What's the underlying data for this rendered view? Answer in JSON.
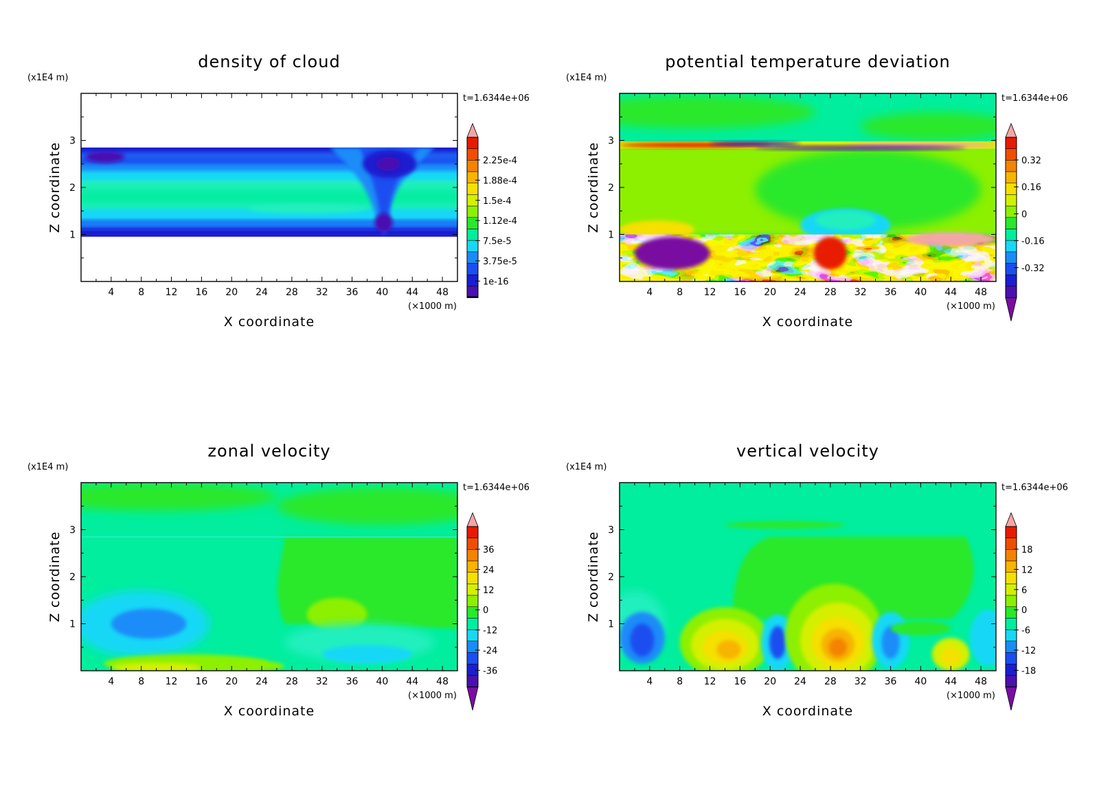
{
  "colors": {
    "palette": [
      "#7a0da1",
      "#4a10b0",
      "#1a1ed0",
      "#1a4ef0",
      "#1a8cf8",
      "#18d8f6",
      "#00ee9e",
      "#2ae82a",
      "#8df000",
      "#d4f000",
      "#f5e000",
      "#f7b400",
      "#f48300",
      "#ef4e00",
      "#e81a00",
      "#f4a6a6"
    ],
    "cloud": "#ffffff",
    "frame": "#000000"
  },
  "chart_data": [
    {
      "type": "heatmap",
      "title": "density of cloud",
      "xlabel": "X coordinate",
      "ylabel": "Z coordinate",
      "x_unit": "(×1000 m)",
      "y_unit": "(x1E4 m)",
      "time_label": "t=1.6344e+06",
      "xlim": [
        0,
        50
      ],
      "ylim": [
        0,
        4
      ],
      "xticks": [
        "4",
        "8",
        "12",
        "16",
        "20",
        "24",
        "28",
        "32",
        "36",
        "40",
        "44",
        "48"
      ],
      "yticks": [
        "1",
        "2",
        "3"
      ],
      "colorbar_labels": [
        "2.25e-4",
        "1.88e-4",
        "1.5e-4",
        "1.12e-4",
        "7.5e-5",
        "3.75e-5",
        "1e-16"
      ],
      "colorbar_levels": [
        1e-16,
        3.75e-05,
        7.5e-05,
        0.000112,
        0.00015,
        0.000188,
        0.000225
      ],
      "colorbar_arrows": "top-only",
      "cloud_layer_z": [
        0.95,
        2.85
      ],
      "features": [
        {
          "kind": "dense-core",
          "x": 40,
          "z": [
            1.0,
            2.6
          ]
        },
        {
          "kind": "dense-blob",
          "x": 41,
          "z": 2.5
        },
        {
          "kind": "dense-blob",
          "x": 3,
          "z": 2.65
        }
      ]
    },
    {
      "type": "heatmap",
      "title": "potential temperature deviation",
      "xlabel": "X coordinate",
      "ylabel": "Z coordinate",
      "x_unit": "(×1000 m)",
      "y_unit": "(x1E4 m)",
      "time_label": "t=1.6344e+06",
      "xlim": [
        0,
        50
      ],
      "ylim": [
        0,
        4
      ],
      "xticks": [
        "4",
        "8",
        "12",
        "16",
        "20",
        "24",
        "28",
        "32",
        "36",
        "40",
        "44",
        "48"
      ],
      "yticks": [
        "1",
        "2",
        "3"
      ],
      "colorbar_labels": [
        "0.32",
        "0.16",
        "0",
        "-0.16",
        "-0.32"
      ],
      "colorbar_levels": [
        -0.32,
        -0.16,
        0,
        0.16,
        0.32
      ],
      "colorbar_arrows": "both",
      "features": [
        {
          "kind": "turbulent-layer",
          "z": [
            0,
            1.0
          ]
        },
        {
          "kind": "thin-layer",
          "z": [
            2.8,
            3.0
          ]
        },
        {
          "kind": "warm-region",
          "x": [
            18,
            48
          ],
          "z": [
            1.0,
            2.95
          ]
        },
        {
          "kind": "cool-bump",
          "x": 30,
          "z": 1.2
        }
      ]
    },
    {
      "type": "heatmap",
      "title": "zonal velocity",
      "xlabel": "X coordinate",
      "ylabel": "Z coordinate",
      "x_unit": "(×1000 m)",
      "y_unit": "(x1E4 m)",
      "time_label": "t=1.6344e+06",
      "xlim": [
        0,
        50
      ],
      "ylim": [
        0,
        4
      ],
      "xticks": [
        "4",
        "8",
        "12",
        "16",
        "20",
        "24",
        "28",
        "32",
        "36",
        "40",
        "44",
        "48"
      ],
      "yticks": [
        "1",
        "2",
        "3"
      ],
      "colorbar_labels": [
        "36",
        "24",
        "12",
        "0",
        "-12",
        "-24",
        "-36"
      ],
      "colorbar_levels": [
        -36,
        -24,
        -12,
        0,
        12,
        24,
        36
      ],
      "colorbar_arrows": "both",
      "features": [
        {
          "kind": "negative-jet",
          "x": 9,
          "z": 1.0
        },
        {
          "kind": "positive-surface",
          "x": [
            4,
            24
          ],
          "z": 0.1
        },
        {
          "kind": "positive-region",
          "x": [
            27,
            50
          ],
          "z": [
            0.2,
            2.9
          ]
        },
        {
          "kind": "positive-blob",
          "x": 34,
          "z": 1.2
        }
      ]
    },
    {
      "type": "heatmap",
      "title": "vertical velocity",
      "xlabel": "X coordinate",
      "ylabel": "Z coordinate",
      "x_unit": "(×1000 m)",
      "y_unit": "(x1E4 m)",
      "time_label": "t=1.6344e+06",
      "xlim": [
        0,
        50
      ],
      "ylim": [
        0,
        4
      ],
      "xticks": [
        "4",
        "8",
        "12",
        "16",
        "20",
        "24",
        "28",
        "32",
        "36",
        "40",
        "44",
        "48"
      ],
      "yticks": [
        "1",
        "2",
        "3"
      ],
      "colorbar_labels": [
        "18",
        "12",
        "6",
        "0",
        "-6",
        "-12",
        "-18"
      ],
      "colorbar_levels": [
        -18,
        -12,
        -6,
        0,
        6,
        12,
        18
      ],
      "colorbar_arrows": "both",
      "features": [
        {
          "kind": "updraft",
          "x": 14,
          "z": 0.6
        },
        {
          "kind": "updraft",
          "x": 29,
          "z": 0.6
        },
        {
          "kind": "updraft",
          "x": 44,
          "z": 0.4
        },
        {
          "kind": "downdraft",
          "x": 3,
          "z": 0.7
        },
        {
          "kind": "downdraft",
          "x": 21,
          "z": 0.6
        },
        {
          "kind": "downdraft",
          "x": 36,
          "z": 0.7
        }
      ]
    }
  ]
}
